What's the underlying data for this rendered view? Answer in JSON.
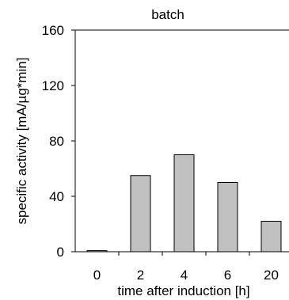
{
  "chart_data": {
    "type": "bar",
    "title": "batch",
    "xlabel": "time after induction [h]",
    "ylabel": "specific activity [mA/µg*min]",
    "categories": [
      "0",
      "2",
      "4",
      "6",
      "20"
    ],
    "values": [
      0.8,
      55,
      70,
      50,
      22
    ],
    "ylim": [
      0,
      160
    ],
    "yticks": [
      0,
      40,
      80,
      120,
      160
    ],
    "grid": false,
    "bar_color": "#c0c0c0",
    "bar_edge_color": "#000000"
  }
}
